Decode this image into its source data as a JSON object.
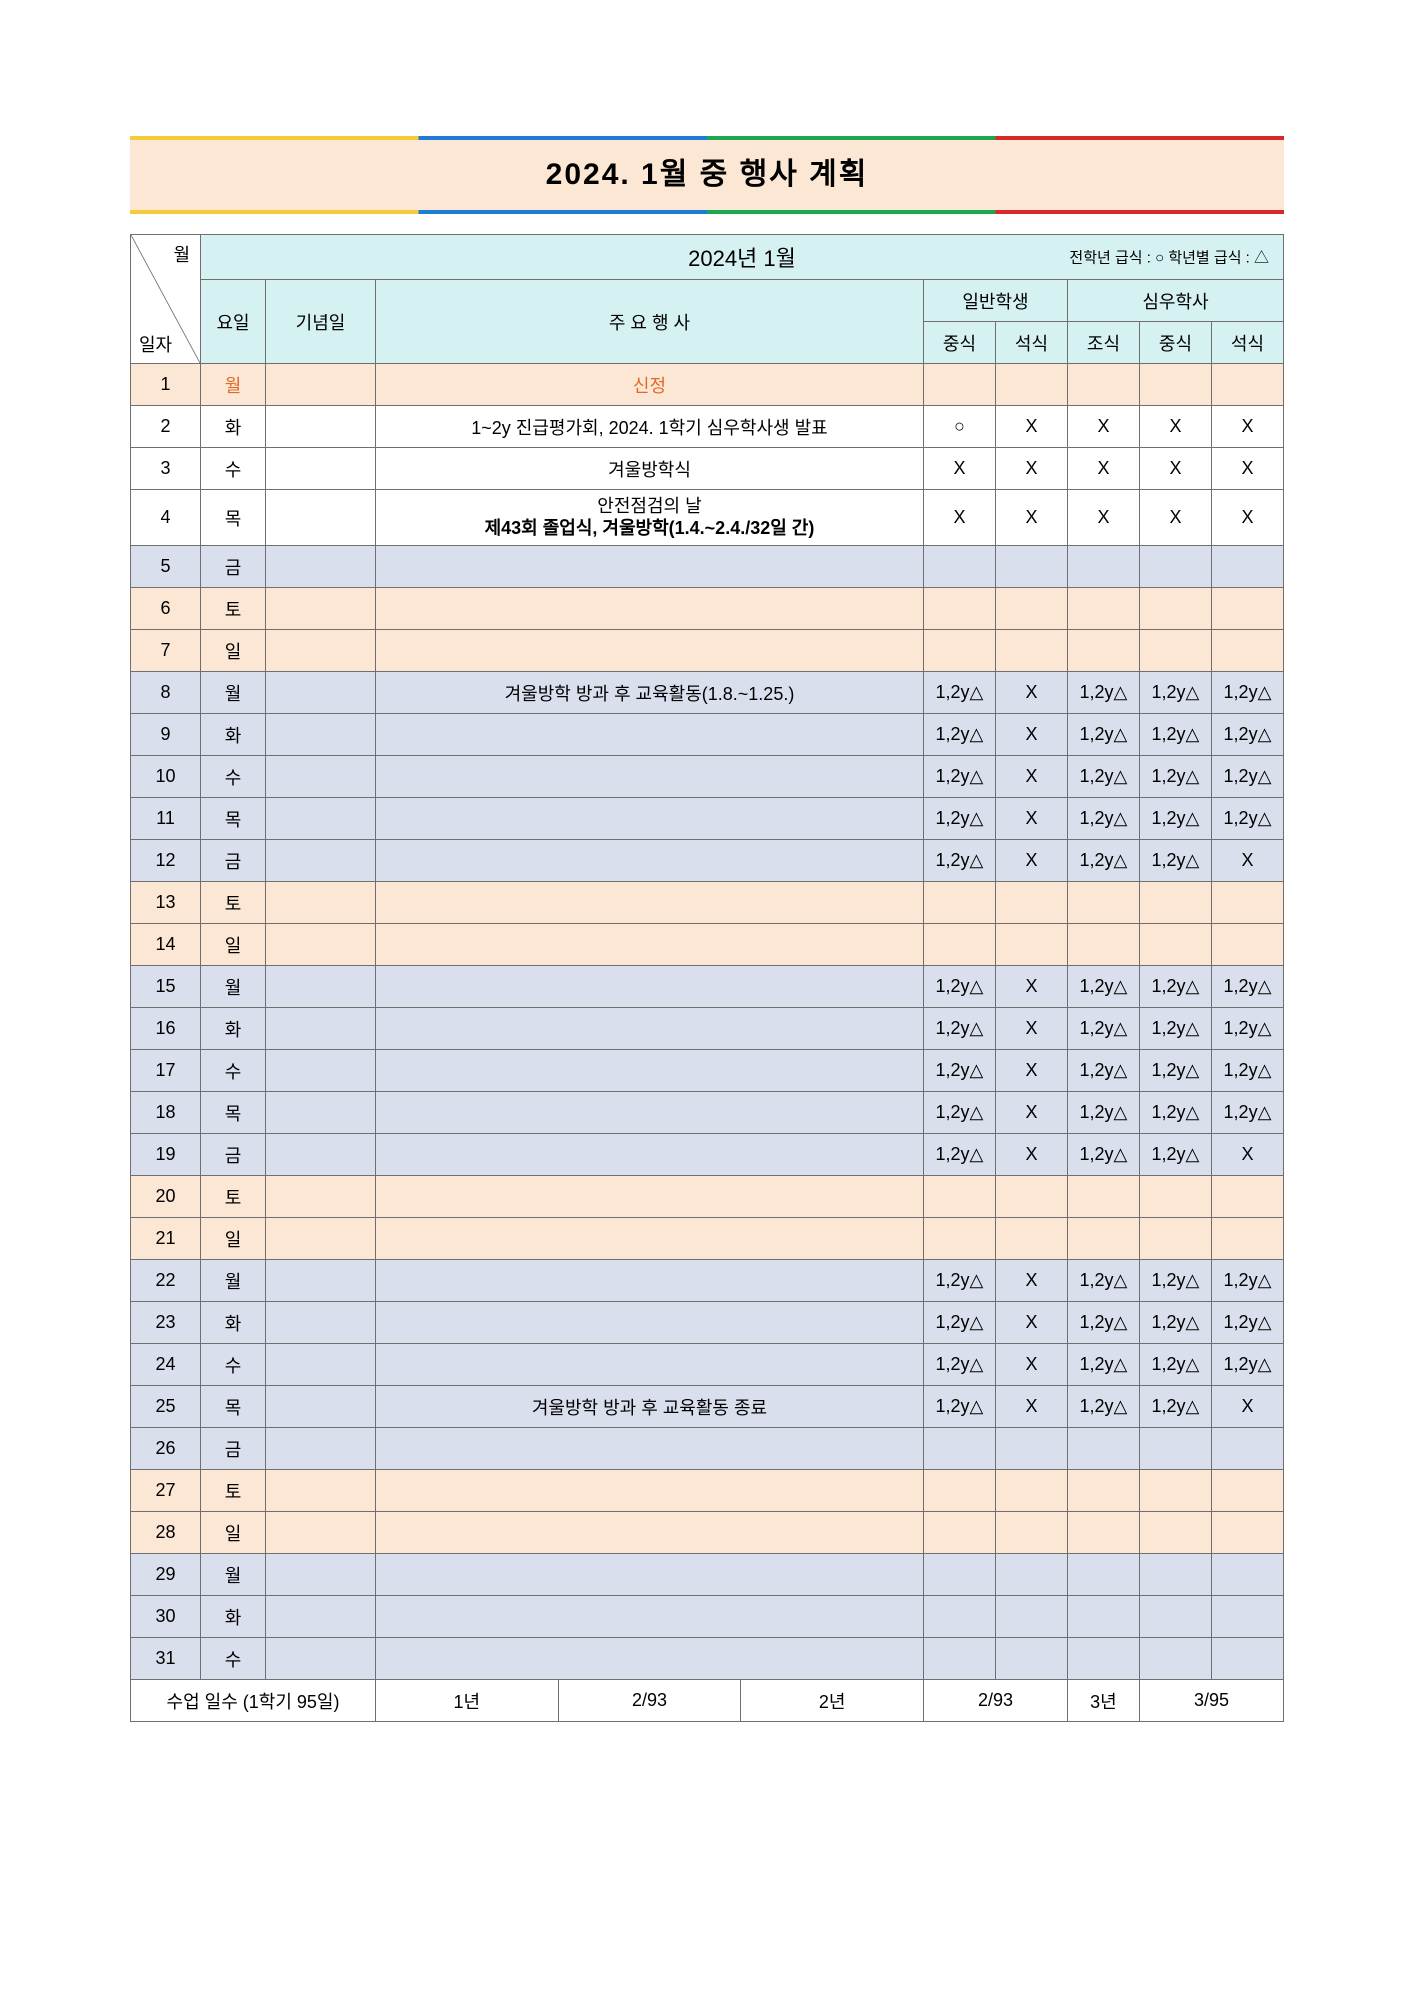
{
  "title": "2024. 1월 중 행사 계획",
  "month_header": "2024년 1월",
  "legend": "전학년 급식 : ○  학년별 급식 : △",
  "header_labels": {
    "month_diag_top": "월",
    "month_diag_bottom": "일자",
    "day": "요일",
    "anniversary": "기념일",
    "main_events": "주   요   행   사",
    "general_student": "일반학생",
    "dorm_student": "심우학사",
    "lunch": "중식",
    "dinner": "석식",
    "breakfast": "조식"
  },
  "rows": [
    {
      "d": "1",
      "w": "월",
      "wred": true,
      "ev": "신정",
      "evred": true,
      "bg": "peach",
      "m": [
        "",
        "",
        "",
        "",
        ""
      ]
    },
    {
      "d": "2",
      "w": "화",
      "ev": "1~2y 진급평가회, 2024. 1학기 심우학사생 발표",
      "bg": "plain",
      "m": [
        "○",
        "X",
        "X",
        "X",
        "X"
      ]
    },
    {
      "d": "3",
      "w": "수",
      "ev": "겨울방학식",
      "bg": "plain",
      "m": [
        "X",
        "X",
        "X",
        "X",
        "X"
      ]
    },
    {
      "d": "4",
      "w": "목",
      "ev": "안전점검의 날\n제43회 졸업식, 겨울방학(1.4.~2.4./32일 간)",
      "evsmall": true,
      "bg": "plain",
      "m": [
        "X",
        "X",
        "X",
        "X",
        "X"
      ]
    },
    {
      "d": "5",
      "w": "금",
      "ev": "",
      "bg": "blue",
      "m": [
        "",
        "",
        "",
        "",
        ""
      ]
    },
    {
      "d": "6",
      "w": "토",
      "ev": "",
      "bg": "peach",
      "m": [
        "",
        "",
        "",
        "",
        ""
      ]
    },
    {
      "d": "7",
      "w": "일",
      "ev": "",
      "bg": "peach",
      "m": [
        "",
        "",
        "",
        "",
        ""
      ]
    },
    {
      "d": "8",
      "w": "월",
      "ev": "겨울방학 방과 후 교육활동(1.8.~1.25.)",
      "bg": "blue",
      "m": [
        "1,2y△",
        "X",
        "1,2y△",
        "1,2y△",
        "1,2y△"
      ]
    },
    {
      "d": "9",
      "w": "화",
      "ev": "",
      "bg": "blue",
      "m": [
        "1,2y△",
        "X",
        "1,2y△",
        "1,2y△",
        "1,2y△"
      ]
    },
    {
      "d": "10",
      "w": "수",
      "ev": "",
      "bg": "blue",
      "m": [
        "1,2y△",
        "X",
        "1,2y△",
        "1,2y△",
        "1,2y△"
      ]
    },
    {
      "d": "11",
      "w": "목",
      "ev": "",
      "bg": "blue",
      "m": [
        "1,2y△",
        "X",
        "1,2y△",
        "1,2y△",
        "1,2y△"
      ]
    },
    {
      "d": "12",
      "w": "금",
      "ev": "",
      "bg": "blue",
      "m": [
        "1,2y△",
        "X",
        "1,2y△",
        "1,2y△",
        "X"
      ]
    },
    {
      "d": "13",
      "w": "토",
      "ev": "",
      "bg": "peach",
      "m": [
        "",
        "",
        "",
        "",
        ""
      ]
    },
    {
      "d": "14",
      "w": "일",
      "ev": "",
      "bg": "peach",
      "m": [
        "",
        "",
        "",
        "",
        ""
      ]
    },
    {
      "d": "15",
      "w": "월",
      "ev": "",
      "bg": "blue",
      "m": [
        "1,2y△",
        "X",
        "1,2y△",
        "1,2y△",
        "1,2y△"
      ]
    },
    {
      "d": "16",
      "w": "화",
      "ev": "",
      "bg": "blue",
      "m": [
        "1,2y△",
        "X",
        "1,2y△",
        "1,2y△",
        "1,2y△"
      ]
    },
    {
      "d": "17",
      "w": "수",
      "ev": "",
      "bg": "blue",
      "m": [
        "1,2y△",
        "X",
        "1,2y△",
        "1,2y△",
        "1,2y△"
      ]
    },
    {
      "d": "18",
      "w": "목",
      "ev": "",
      "bg": "blue",
      "m": [
        "1,2y△",
        "X",
        "1,2y△",
        "1,2y△",
        "1,2y△"
      ]
    },
    {
      "d": "19",
      "w": "금",
      "ev": "",
      "bg": "blue",
      "m": [
        "1,2y△",
        "X",
        "1,2y△",
        "1,2y△",
        "X"
      ]
    },
    {
      "d": "20",
      "w": "토",
      "ev": "",
      "bg": "peach",
      "m": [
        "",
        "",
        "",
        "",
        ""
      ]
    },
    {
      "d": "21",
      "w": "일",
      "ev": "",
      "bg": "peach",
      "m": [
        "",
        "",
        "",
        "",
        ""
      ]
    },
    {
      "d": "22",
      "w": "월",
      "ev": "",
      "bg": "blue",
      "m": [
        "1,2y△",
        "X",
        "1,2y△",
        "1,2y△",
        "1,2y△"
      ]
    },
    {
      "d": "23",
      "w": "화",
      "ev": "",
      "bg": "blue",
      "m": [
        "1,2y△",
        "X",
        "1,2y△",
        "1,2y△",
        "1,2y△"
      ]
    },
    {
      "d": "24",
      "w": "수",
      "ev": "",
      "bg": "blue",
      "m": [
        "1,2y△",
        "X",
        "1,2y△",
        "1,2y△",
        "1,2y△"
      ]
    },
    {
      "d": "25",
      "w": "목",
      "ev": "겨울방학 방과 후 교육활동 종료",
      "bg": "blue",
      "m": [
        "1,2y△",
        "X",
        "1,2y△",
        "1,2y△",
        "X"
      ]
    },
    {
      "d": "26",
      "w": "금",
      "ev": "",
      "bg": "blue",
      "m": [
        "",
        "",
        "",
        "",
        ""
      ]
    },
    {
      "d": "27",
      "w": "토",
      "ev": "",
      "bg": "peach",
      "m": [
        "",
        "",
        "",
        "",
        ""
      ]
    },
    {
      "d": "28",
      "w": "일",
      "ev": "",
      "bg": "peach",
      "m": [
        "",
        "",
        "",
        "",
        ""
      ]
    },
    {
      "d": "29",
      "w": "월",
      "ev": "",
      "bg": "blue",
      "m": [
        "",
        "",
        "",
        "",
        ""
      ]
    },
    {
      "d": "30",
      "w": "화",
      "ev": "",
      "bg": "blue",
      "m": [
        "",
        "",
        "",
        "",
        ""
      ]
    },
    {
      "d": "31",
      "w": "수",
      "ev": "",
      "bg": "blue",
      "m": [
        "",
        "",
        "",
        "",
        ""
      ]
    }
  ],
  "footer": {
    "label": "수업 일수 (1학기 95일)",
    "y1_label": "1년",
    "y1_val": "2/93",
    "y2_label": "2년",
    "y2_val": "2/93",
    "y3_label": "3년",
    "y3_val": "3/95"
  },
  "colors": {
    "peach": "#fce6d4",
    "blue": "#dadfee",
    "cyan": "#d5f1f1",
    "border": "#6f6f6f",
    "title_band": "#fce6d4",
    "text": "#000000",
    "red_txt": "#e06a2b"
  }
}
